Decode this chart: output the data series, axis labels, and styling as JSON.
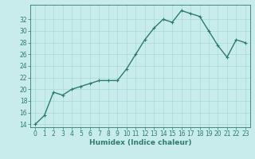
{
  "x": [
    0,
    1,
    2,
    3,
    4,
    5,
    6,
    7,
    8,
    9,
    10,
    11,
    12,
    13,
    14,
    15,
    16,
    17,
    18,
    19,
    20,
    21,
    22,
    23
  ],
  "y": [
    14,
    15.5,
    19.5,
    19,
    20,
    20.5,
    21,
    21.5,
    21.5,
    21.5,
    23.5,
    26,
    28.5,
    30.5,
    32,
    31.5,
    33.5,
    33,
    32.5,
    30,
    27.5,
    25.5,
    28.5,
    28
  ],
  "line_color": "#2e7b6e",
  "marker_color": "#2e7b6e",
  "bg_color": "#c8ecec",
  "grid_color": "#a8d8d8",
  "xlabel": "Humidex (Indice chaleur)",
  "xlim": [
    -0.5,
    23.5
  ],
  "ylim": [
    13.5,
    34.5
  ],
  "yticks": [
    14,
    16,
    18,
    20,
    22,
    24,
    26,
    28,
    30,
    32
  ],
  "xticks": [
    0,
    1,
    2,
    3,
    4,
    5,
    6,
    7,
    8,
    9,
    10,
    11,
    12,
    13,
    14,
    15,
    16,
    17,
    18,
    19,
    20,
    21,
    22,
    23
  ],
  "tick_fontsize": 5.5,
  "xlabel_fontsize": 6.5,
  "linewidth": 1.0,
  "markersize": 2.0
}
